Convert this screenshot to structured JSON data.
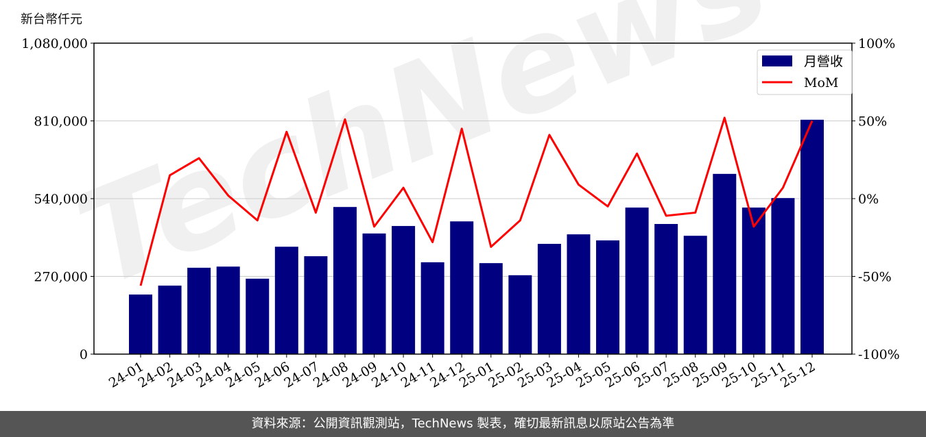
{
  "chart_data": {
    "type": "bar",
    "ylabel": "新台幣仟元",
    "categories": [
      "24-01",
      "24-02",
      "24-03",
      "24-04",
      "24-05",
      "24-06",
      "24-07",
      "24-08",
      "24-09",
      "24-10",
      "24-11",
      "24-12",
      "25-01",
      "25-02",
      "25-03",
      "25-04",
      "25-05",
      "25-06",
      "25-07",
      "25-08",
      "25-09",
      "25-10",
      "25-11",
      "25-12"
    ],
    "series": [
      {
        "name": "月營收",
        "type": "bar",
        "axis": "left",
        "color": "#000080",
        "values": [
          207000,
          238000,
          300000,
          304000,
          262000,
          373000,
          340000,
          511000,
          419000,
          445000,
          319000,
          461000,
          316000,
          274000,
          383000,
          416000,
          395000,
          509000,
          452000,
          411000,
          626000,
          509000,
          542000,
          814000
        ]
      },
      {
        "name": "MoM",
        "type": "line",
        "axis": "right",
        "color": "#ff0000",
        "values": [
          -56,
          15,
          26,
          2,
          -14,
          43,
          -9,
          51,
          -18,
          7,
          -28,
          45,
          -31,
          -14,
          41,
          9,
          -5,
          29,
          -11,
          -9,
          52,
          -18,
          7,
          50
        ]
      }
    ],
    "ylim": [
      0,
      1080000
    ],
    "yticks": [
      "0",
      "270,000",
      "540,000",
      "810,000",
      "1,080,000"
    ],
    "y2lim": [
      -100,
      100
    ],
    "y2ticks": [
      "-100%",
      "-50%",
      "0%",
      "50%",
      "100%"
    ],
    "grid": "horizontal",
    "legend": "top-right"
  },
  "watermark": "TechNews",
  "footer": "資料來源：公開資訊觀測站，TechNews 製表，確切最新訊息以原站公告為準"
}
